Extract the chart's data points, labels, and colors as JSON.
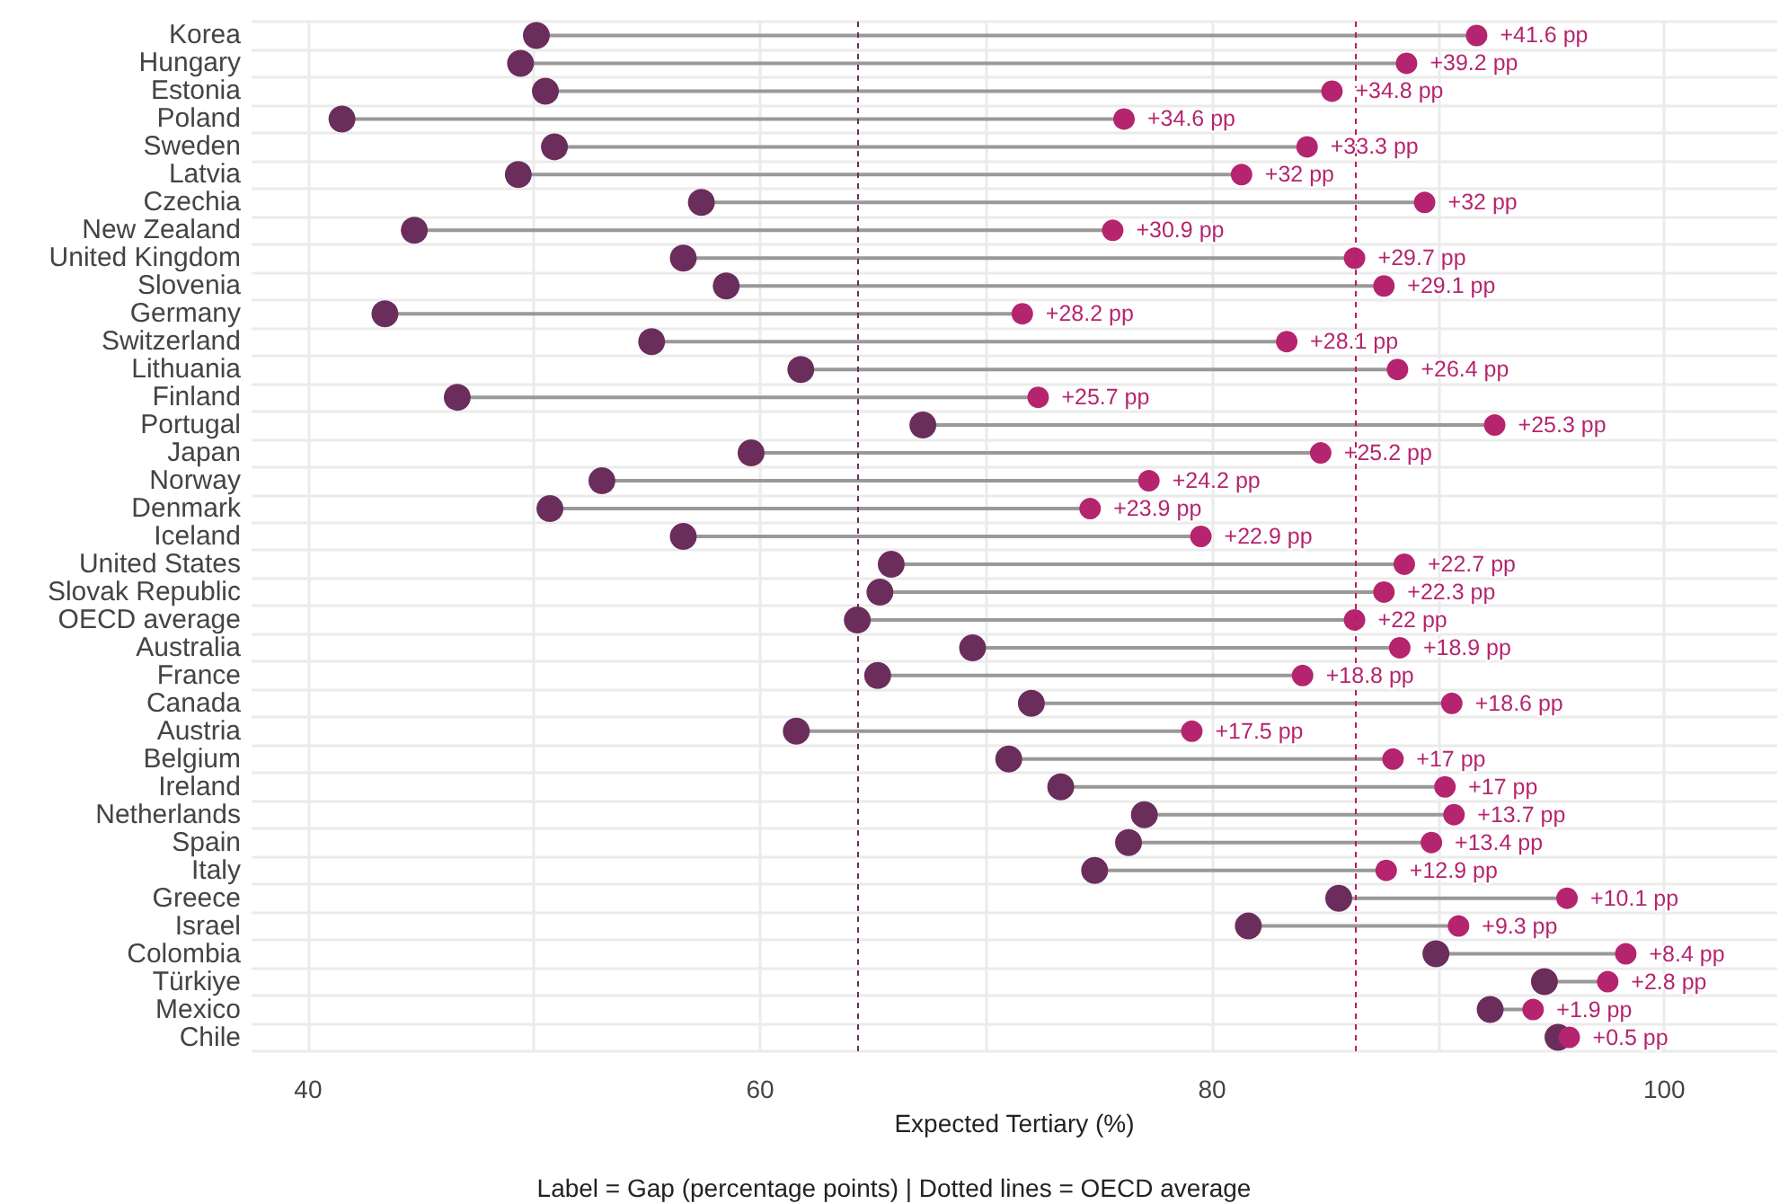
{
  "chart_data": {
    "type": "scatter",
    "orientation": "horizontal",
    "categories": [
      "Korea",
      "Hungary",
      "Estonia",
      "Poland",
      "Sweden",
      "Latvia",
      "Czechia",
      "New Zealand",
      "United Kingdom",
      "Slovenia",
      "Germany",
      "Switzerland",
      "Lithuania",
      "Finland",
      "Portugal",
      "Japan",
      "Norway",
      "Denmark",
      "Iceland",
      "United States",
      "Slovak Republic",
      "OECD average",
      "Australia",
      "France",
      "Canada",
      "Austria",
      "Belgium",
      "Ireland",
      "Netherlands",
      "Spain",
      "Italy",
      "Greece",
      "Israel",
      "Colombia",
      "Türkiye",
      "Mexico",
      "Chile"
    ],
    "series": [
      {
        "color": "#6b2d5c",
        "values": [
          50.1,
          49.4,
          50.5,
          41.5,
          50.9,
          49.3,
          57.4,
          44.7,
          56.6,
          58.5,
          43.4,
          55.2,
          61.8,
          46.6,
          67.2,
          59.6,
          53.0,
          50.7,
          56.6,
          65.8,
          65.3,
          64.3,
          69.4,
          65.2,
          72.0,
          61.6,
          71.0,
          73.3,
          77.0,
          76.3,
          74.8,
          85.6,
          81.6,
          89.9,
          94.7,
          92.3,
          95.3
        ]
      },
      {
        "color": "#b5246e",
        "values": [
          91.7,
          88.6,
          85.3,
          76.1,
          84.2,
          81.3,
          89.4,
          75.6,
          86.3,
          87.6,
          71.6,
          83.3,
          88.2,
          72.3,
          92.5,
          84.8,
          77.2,
          74.6,
          79.5,
          88.5,
          87.6,
          86.3,
          88.3,
          84.0,
          90.6,
          79.1,
          88.0,
          90.3,
          90.7,
          89.7,
          87.7,
          95.7,
          90.9,
          98.3,
          97.5,
          94.2,
          95.8
        ]
      }
    ],
    "xlabel": "Expected Tertiary (%)",
    "xlim": [
      37.5,
      105
    ],
    "xticks": [
      40,
      {
        "value": 50,
        "label": null
      },
      60,
      {
        "value": 70,
        "label": null
      },
      80,
      {
        "value": 90,
        "label": null
      },
      100
    ],
    "ref_lines": [
      {
        "axis": "x",
        "value": 64.3,
        "color": "#6b2d5c",
        "line_style": "dashed"
      },
      {
        "axis": "x",
        "value": 86.3,
        "color": "#c2185b",
        "line_style": "dashed"
      }
    ],
    "annotations": [
      {
        "text": "+41.6 pp",
        "x": 91.7,
        "y": "Korea"
      },
      {
        "text": "+39.2 pp",
        "x": 88.6,
        "y": "Hungary"
      },
      {
        "text": "+34.8 pp",
        "x": 85.3,
        "y": "Estonia"
      },
      {
        "text": "+34.6 pp",
        "x": 76.1,
        "y": "Poland"
      },
      {
        "text": "+33.3 pp",
        "x": 84.2,
        "y": "Sweden"
      },
      {
        "text": "+32 pp",
        "x": 81.3,
        "y": "Latvia"
      },
      {
        "text": "+32 pp",
        "x": 89.4,
        "y": "Czechia"
      },
      {
        "text": "+30.9 pp",
        "x": 75.6,
        "y": "New Zealand"
      },
      {
        "text": "+29.7 pp",
        "x": 86.3,
        "y": "United Kingdom"
      },
      {
        "text": "+29.1 pp",
        "x": 87.6,
        "y": "Slovenia"
      },
      {
        "text": "+28.2 pp",
        "x": 71.6,
        "y": "Germany"
      },
      {
        "text": "+28.1 pp",
        "x": 83.3,
        "y": "Switzerland"
      },
      {
        "text": "+26.4 pp",
        "x": 88.2,
        "y": "Lithuania"
      },
      {
        "text": "+25.7 pp",
        "x": 72.3,
        "y": "Finland"
      },
      {
        "text": "+25.3 pp",
        "x": 92.5,
        "y": "Portugal"
      },
      {
        "text": "+25.2 pp",
        "x": 84.8,
        "y": "Japan"
      },
      {
        "text": "+24.2 pp",
        "x": 77.2,
        "y": "Norway"
      },
      {
        "text": "+23.9 pp",
        "x": 74.6,
        "y": "Denmark"
      },
      {
        "text": "+22.9 pp",
        "x": 79.5,
        "y": "Iceland"
      },
      {
        "text": "+22.7 pp",
        "x": 88.5,
        "y": "United States"
      },
      {
        "text": "+22.3 pp",
        "x": 87.6,
        "y": "Slovak Republic"
      },
      {
        "text": "+22 pp",
        "x": 86.3,
        "y": "OECD average"
      },
      {
        "text": "+18.9 pp",
        "x": 88.3,
        "y": "Australia"
      },
      {
        "text": "+18.8 pp",
        "x": 84.0,
        "y": "France"
      },
      {
        "text": "+18.6 pp",
        "x": 90.6,
        "y": "Canada"
      },
      {
        "text": "+17.5 pp",
        "x": 79.1,
        "y": "Austria"
      },
      {
        "text": "+17 pp",
        "x": 88.0,
        "y": "Belgium"
      },
      {
        "text": "+17 pp",
        "x": 90.3,
        "y": "Ireland"
      },
      {
        "text": "+13.7 pp",
        "x": 90.7,
        "y": "Netherlands"
      },
      {
        "text": "+13.4 pp",
        "x": 89.7,
        "y": "Spain"
      },
      {
        "text": "+12.9 pp",
        "x": 87.7,
        "y": "Italy"
      },
      {
        "text": "+10.1 pp",
        "x": 95.7,
        "y": "Greece"
      },
      {
        "text": "+9.3 pp",
        "x": 90.9,
        "y": "Israel"
      },
      {
        "text": "+8.4 pp",
        "x": 98.3,
        "y": "Colombia"
      },
      {
        "text": "+2.8 pp",
        "x": 97.5,
        "y": "Türkiye"
      },
      {
        "text": "+1.9 pp",
        "x": 94.2,
        "y": "Mexico"
      },
      {
        "text": "+0.5 pp",
        "x": 95.8,
        "y": "Chile"
      },
      "Label = Gap (percentage points) | Dotted lines = OECD average"
    ],
    "grid": true,
    "marker": "circle"
  }
}
